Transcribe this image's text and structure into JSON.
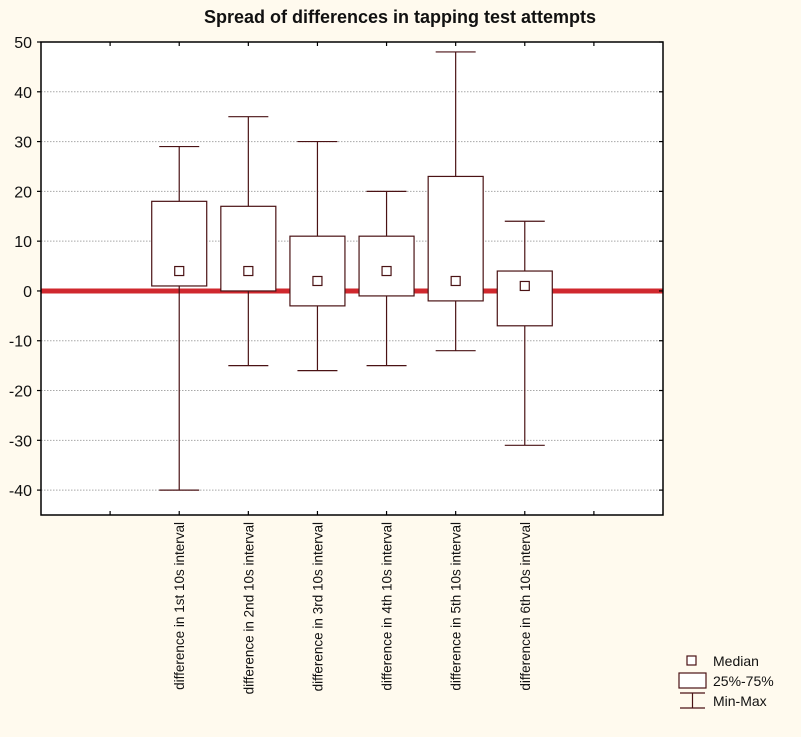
{
  "chart_data": {
    "type": "boxplot",
    "title": "Spread of differences in tapping test attempts",
    "xlabel": "",
    "ylabel": "",
    "ylim": [
      -45,
      50
    ],
    "yticks": [
      50,
      40,
      30,
      20,
      10,
      0,
      -10,
      -20,
      -30,
      -40
    ],
    "grid": "horizontal dotted",
    "reference_line": {
      "y": 0,
      "color": "#d0282e"
    },
    "box_color": "#4a1214",
    "categories": [
      "difference in 1st 10s interval",
      "difference in 2nd 10s interval",
      "difference in 3rd 10s interval",
      "difference in 4th 10s interval",
      "difference in 5th 10s interval",
      "difference in 6th 10s interval"
    ],
    "boxes": [
      {
        "min": -40,
        "q1": 1,
        "median": 4,
        "q3": 18,
        "max": 29
      },
      {
        "min": -15,
        "q1": 0,
        "median": 4,
        "q3": 17,
        "max": 35
      },
      {
        "min": -16,
        "q1": -3,
        "median": 2,
        "q3": 11,
        "max": 30
      },
      {
        "min": -15,
        "q1": -1,
        "median": 4,
        "q3": 11,
        "max": 20
      },
      {
        "min": -12,
        "q1": -2,
        "median": 2,
        "q3": 23,
        "max": 48
      },
      {
        "min": -31,
        "q1": -7,
        "median": 1,
        "q3": 4,
        "max": 14
      }
    ],
    "legend": {
      "position": "bottom-right",
      "entries": [
        "Median",
        "25%-75%",
        "Min-Max"
      ]
    }
  }
}
